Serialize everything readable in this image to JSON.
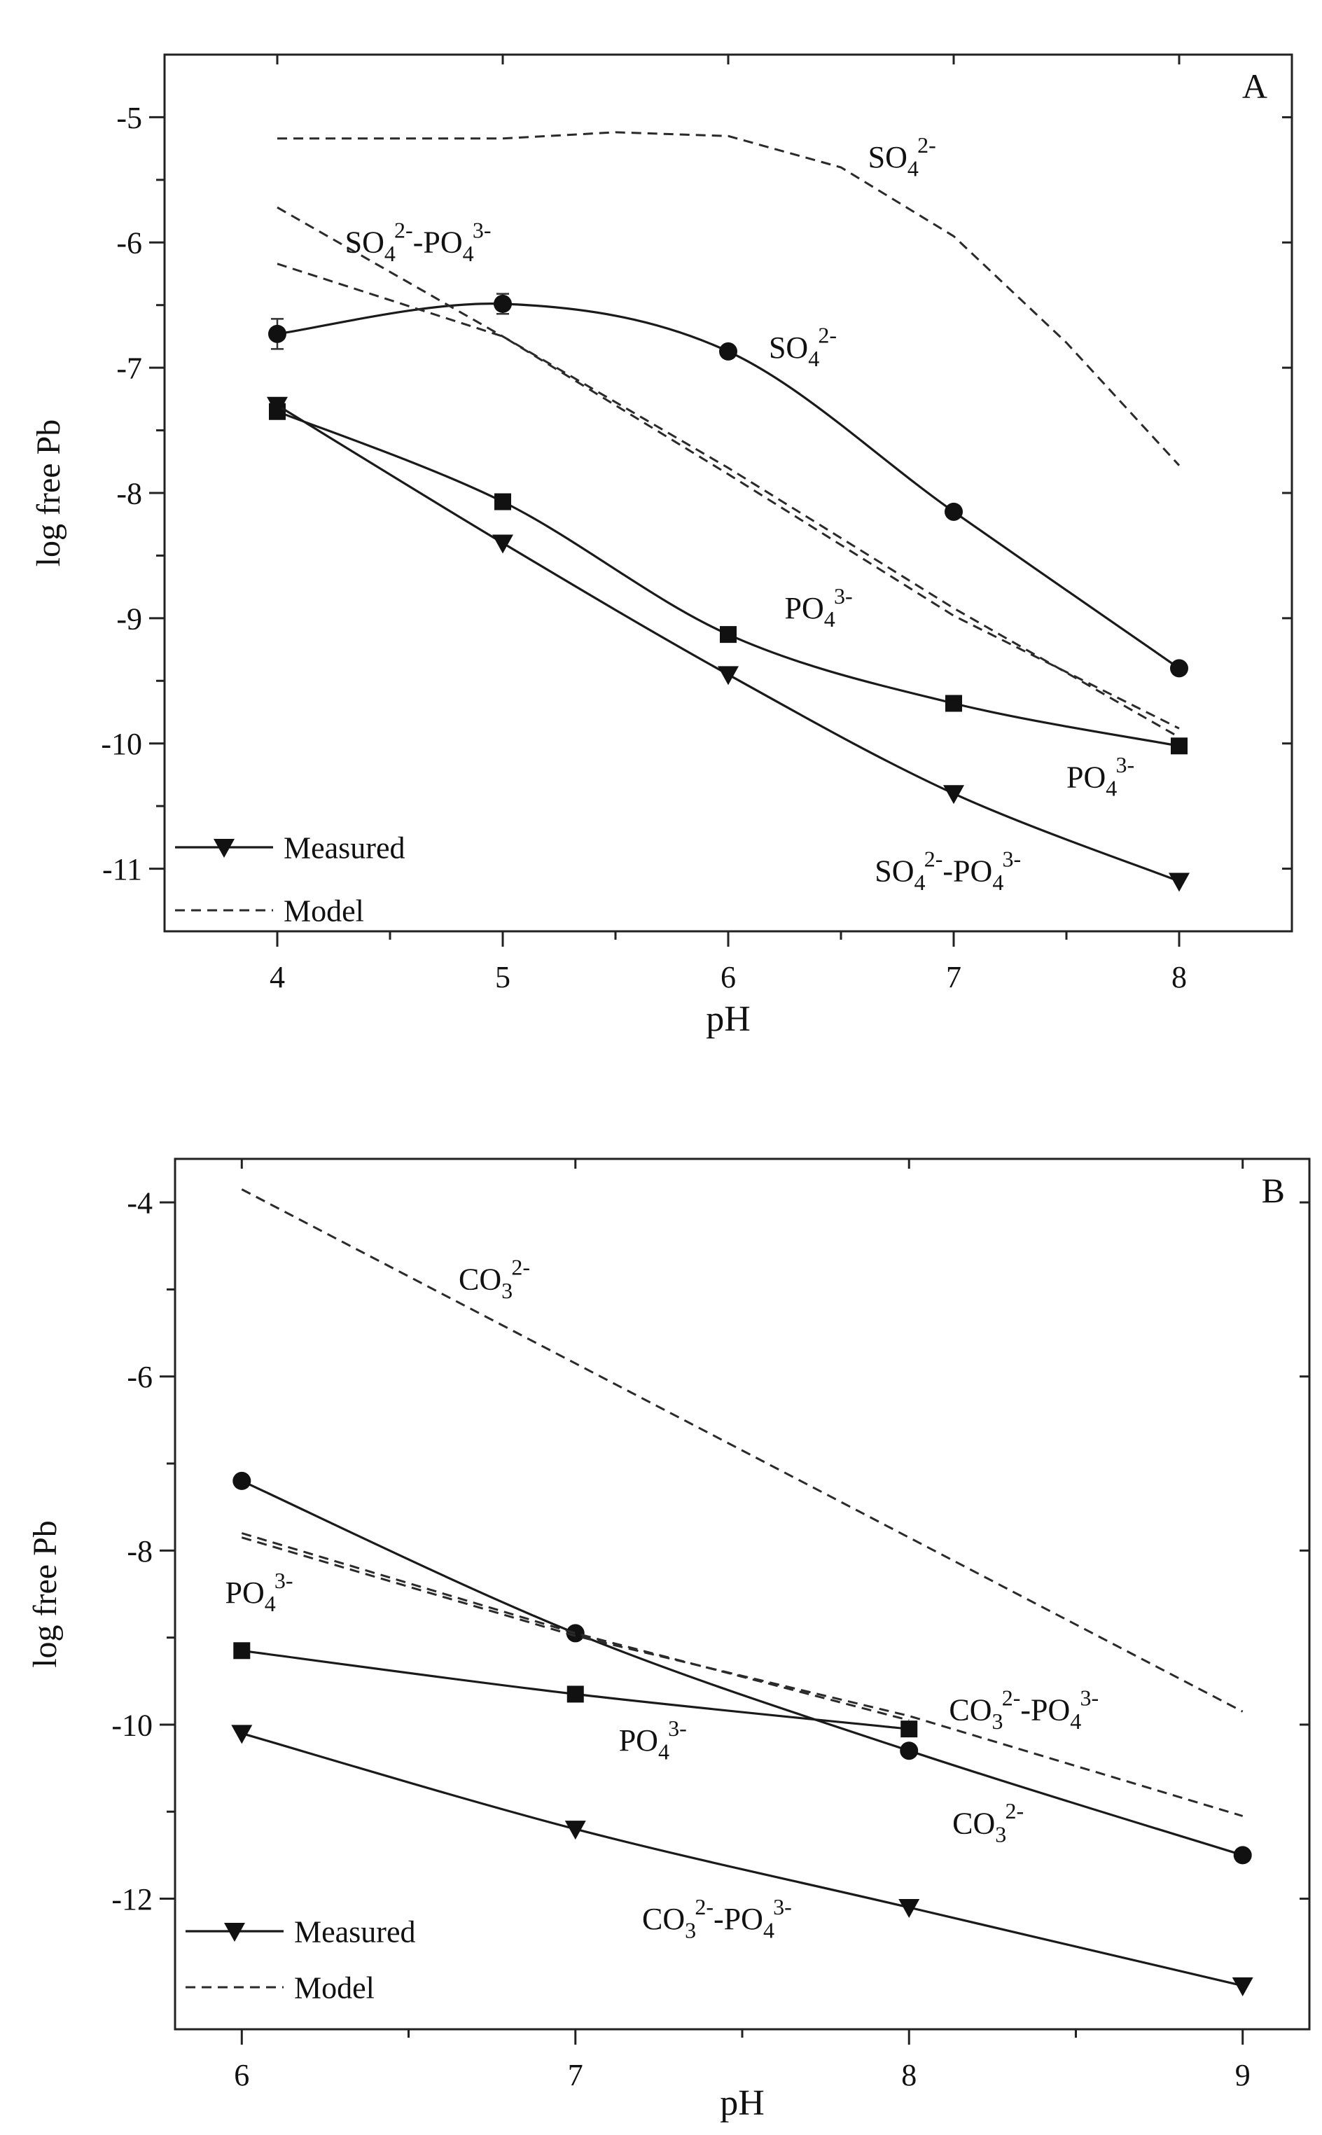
{
  "chart_data": [
    {
      "panel_label": "A",
      "type": "line",
      "xlabel": "pH",
      "ylabel": "log free Pb",
      "xlim": [
        3.5,
        8.5
      ],
      "ylim": [
        -11.5,
        -4.5
      ],
      "xticks": [
        4,
        5,
        6,
        7,
        8
      ],
      "yticks": [
        -11,
        -10,
        -9,
        -8,
        -7,
        -6,
        -5
      ],
      "series": [
        {
          "name": "SO4 2- measured",
          "kind": "measured",
          "marker": "circle",
          "x": [
            4,
            5,
            6,
            7,
            8
          ],
          "y": [
            -6.73,
            -6.49,
            -6.87,
            -8.15,
            -9.4
          ],
          "err": [
            0.12,
            0.08,
            0.04,
            0.04,
            0.04
          ]
        },
        {
          "name": "PO4 3- measured",
          "kind": "measured",
          "marker": "square",
          "x": [
            4,
            5,
            6,
            7,
            8
          ],
          "y": [
            -7.35,
            -8.07,
            -9.13,
            -9.68,
            -10.02
          ]
        },
        {
          "name": "SO4 2- -PO4 3- measured",
          "kind": "measured",
          "marker": "triangle-down",
          "x": [
            4,
            5,
            6,
            7,
            8
          ],
          "y": [
            -7.3,
            -8.4,
            -9.45,
            -10.4,
            -11.1
          ]
        },
        {
          "name": "SO4 2- model",
          "kind": "model",
          "x": [
            4,
            5,
            5.5,
            6,
            6.5,
            7,
            7.5,
            8
          ],
          "y": [
            -5.17,
            -5.17,
            -5.12,
            -5.15,
            -5.4,
            -5.95,
            -6.8,
            -7.78
          ]
        },
        {
          "name": "PO4 3- model",
          "kind": "model",
          "x": [
            4,
            5,
            6,
            7,
            8
          ],
          "y": [
            -6.17,
            -6.75,
            -7.85,
            -8.98,
            -9.88
          ]
        },
        {
          "name": "SO4 2- -PO4 3- model",
          "kind": "model",
          "x": [
            4,
            5,
            6,
            7,
            8
          ],
          "y": [
            -5.72,
            -6.75,
            -7.8,
            -8.92,
            -9.95
          ]
        }
      ],
      "annotations": [
        {
          "base": "SO",
          "sub": "4",
          "sup": "2-",
          "x": 6.62,
          "y": -5.4
        },
        {
          "base": "SO",
          "sub": "4",
          "sup": "2-",
          "x": 6.18,
          "y": -6.92
        },
        {
          "base": "SO",
          "sub": "4",
          "sup": "2-",
          "x": 4.3,
          "y": -6.08,
          "tail": {
            "base": "-PO",
            "sub": "4",
            "sup": "3-"
          }
        },
        {
          "base": "PO",
          "sub": "4",
          "sup": "3-",
          "x": 6.25,
          "y": -9.0
        },
        {
          "base": "PO",
          "sub": "4",
          "sup": "3-",
          "x": 7.5,
          "y": -10.35
        },
        {
          "base": "SO",
          "sub": "4",
          "sup": "2-",
          "x": 6.65,
          "y": -11.1,
          "tail": {
            "base": "-PO",
            "sub": "4",
            "sup": "3-"
          }
        }
      ],
      "legend": [
        {
          "label": "Measured",
          "style": "solid-triangle"
        },
        {
          "label": "Model",
          "style": "dashed"
        }
      ]
    },
    {
      "panel_label": "B",
      "type": "line",
      "xlabel": "pH",
      "ylabel": "log free Pb",
      "xlim": [
        5.8,
        9.2
      ],
      "ylim": [
        -13.5,
        -3.5
      ],
      "xticks": [
        6,
        7,
        8,
        9
      ],
      "yticks": [
        -12,
        -10,
        -8,
        -6,
        -4
      ],
      "series": [
        {
          "name": "CO3 2- measured",
          "kind": "measured",
          "marker": "circle",
          "x": [
            6,
            7,
            8,
            9
          ],
          "y": [
            -7.2,
            -8.95,
            -10.3,
            -11.5
          ]
        },
        {
          "name": "PO4 3- measured",
          "kind": "measured",
          "marker": "square",
          "x": [
            6,
            7,
            8
          ],
          "y": [
            -9.15,
            -9.65,
            -10.05
          ]
        },
        {
          "name": "CO3 2- -PO4 3- measured",
          "kind": "measured",
          "marker": "triangle-down",
          "x": [
            6,
            7,
            8,
            9
          ],
          "y": [
            -10.1,
            -11.2,
            -12.1,
            -13.0
          ]
        },
        {
          "name": "CO3 2- model",
          "kind": "model",
          "x": [
            6,
            7,
            8,
            9
          ],
          "y": [
            -3.85,
            -5.85,
            -7.85,
            -9.85
          ]
        },
        {
          "name": "PO4 3- model",
          "kind": "model",
          "x": [
            6,
            7,
            8
          ],
          "y": [
            -7.8,
            -8.95,
            -9.95
          ]
        },
        {
          "name": "CO3 2- -PO4 3- model",
          "kind": "model",
          "x": [
            6,
            7,
            8,
            9
          ],
          "y": [
            -7.85,
            -8.98,
            -9.9,
            -11.05
          ]
        }
      ],
      "annotations": [
        {
          "base": "CO",
          "sub": "3",
          "sup": "2-",
          "x": 6.65,
          "y": -5.0
        },
        {
          "base": "PO",
          "sub": "4",
          "sup": "3-",
          "x": 5.95,
          "y": -8.6
        },
        {
          "base": "PO",
          "sub": "4",
          "sup": "3-",
          "x": 7.13,
          "y": -10.3
        },
        {
          "base": "CO",
          "sub": "3",
          "sup": "2-",
          "x": 8.12,
          "y": -9.95,
          "tail": {
            "base": "-PO",
            "sub": "4",
            "sup": "3-"
          }
        },
        {
          "base": "CO",
          "sub": "3",
          "sup": "2-",
          "x": 8.13,
          "y": -11.25
        },
        {
          "base": "CO",
          "sub": "3",
          "sup": "2-",
          "x": 7.2,
          "y": -12.35,
          "tail": {
            "base": "-PO",
            "sub": "4",
            "sup": "3-"
          }
        }
      ],
      "legend": [
        {
          "label": "Measured",
          "style": "solid-triangle"
        },
        {
          "label": "Model",
          "style": "dashed"
        }
      ]
    }
  ]
}
